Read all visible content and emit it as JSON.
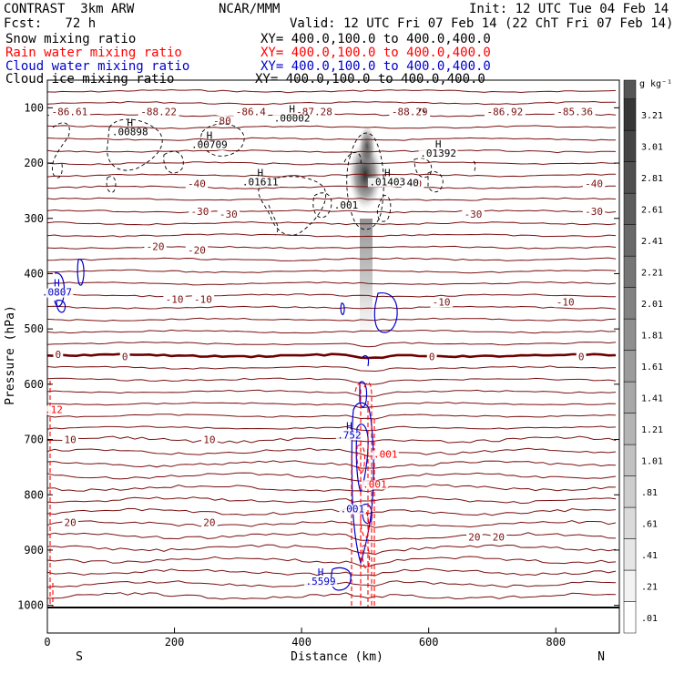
{
  "header": {
    "line1_left": "CONTRAST  3km ARW",
    "line1_center": "NCAR/MMM",
    "line1_right": "Init: 12 UTC Tue 04 Feb 14",
    "line2_left": "Fcst:   72 h",
    "line2_right": "Valid: 12 UTC Fri 07 Feb 14 (22 ChT Fri 07 Feb 14)"
  },
  "legend": [
    {
      "label": "Snow mixing ratio",
      "xy": "XY= 400.0,100.0 to 400.0,400.0",
      "color": "#000000"
    },
    {
      "label": "Rain water mixing ratio",
      "xy": "XY= 400.0,100.0 to 400.0,400.0",
      "color": "#ff0000"
    },
    {
      "label": "Cloud water mixing ratio",
      "xy": "XY= 400.0,100.0 to 400.0,400.0",
      "color": "#0000cc"
    },
    {
      "label": "Cloud ice mixing ratio",
      "xy": "XY= 400.0,100.0 to 400.0,400.0",
      "color": "#000000"
    }
  ],
  "chart_data": {
    "type": "heatmap",
    "xlabel": "Distance (km)",
    "ylabel": "Pressure (hPa)",
    "xlim": [
      0,
      900
    ],
    "ylim": [
      1050,
      50
    ],
    "x_ticks": [
      0,
      200,
      400,
      600,
      800
    ],
    "y_ticks": [
      100,
      200,
      300,
      400,
      500,
      600,
      700,
      800,
      900,
      1000
    ],
    "x_end_labels": {
      "left": "S",
      "right": "N"
    },
    "colorbar": {
      "unit": "g kg⁻¹",
      "levels": [
        ".01",
        ".21",
        ".41",
        ".61",
        ".81",
        "1.01",
        "1.21",
        "1.41",
        "1.61",
        "1.81",
        "2.01",
        "2.21",
        "2.41",
        "2.61",
        "2.81",
        "3.01",
        "3.21"
      ]
    },
    "temperature_labels": [
      {
        "text": "-86.61",
        "x": 35,
        "p": 112
      },
      {
        "text": "-88.22",
        "x": 175,
        "p": 112
      },
      {
        "text": "-80",
        "x": 275,
        "p": 128
      },
      {
        "text": "-86.4",
        "x": 320,
        "p": 112
      },
      {
        "text": "-87.28",
        "x": 420,
        "p": 112
      },
      {
        "text": "-88.29",
        "x": 570,
        "p": 112
      },
      {
        "text": "-86.92",
        "x": 720,
        "p": 112
      },
      {
        "text": "-85.36",
        "x": 830,
        "p": 112
      },
      {
        "text": "-40",
        "x": 235,
        "p": 242
      },
      {
        "text": "-40",
        "x": 575,
        "p": 242
      },
      {
        "text": "-40",
        "x": 860,
        "p": 242
      },
      {
        "text": "-30",
        "x": 240,
        "p": 292
      },
      {
        "text": "-30",
        "x": 285,
        "p": 297
      },
      {
        "text": "-30",
        "x": 670,
        "p": 297
      },
      {
        "text": "-30",
        "x": 860,
        "p": 292
      },
      {
        "text": "-20",
        "x": 170,
        "p": 356
      },
      {
        "text": "-20",
        "x": 235,
        "p": 362
      },
      {
        "text": "-10",
        "x": 200,
        "p": 451
      },
      {
        "text": "-10",
        "x": 245,
        "p": 451
      },
      {
        "text": "-10",
        "x": 620,
        "p": 456
      },
      {
        "text": "-10",
        "x": 815,
        "p": 456
      },
      {
        "text": "0",
        "x": 17,
        "p": 551
      },
      {
        "text": "0",
        "x": 122,
        "p": 555
      },
      {
        "text": "0",
        "x": 605,
        "p": 555
      },
      {
        "text": "0",
        "x": 840,
        "p": 555
      },
      {
        "text": "10",
        "x": 36,
        "p": 705
      },
      {
        "text": "10",
        "x": 255,
        "p": 705
      },
      {
        "text": "20",
        "x": 36,
        "p": 855
      },
      {
        "text": "20",
        "x": 255,
        "p": 855
      },
      {
        "text": "20",
        "x": 672,
        "p": 881
      },
      {
        "text": "20",
        "x": 710,
        "p": 881
      }
    ],
    "max_labels": [
      {
        "text": "H",
        "value": ".00898",
        "x": 130,
        "p": 150,
        "color": "#000000"
      },
      {
        "text": "H",
        "value": ".00709",
        "x": 255,
        "p": 173,
        "color": "#000000"
      },
      {
        "text": "H",
        "value": ".00002",
        "x": 385,
        "p": 125,
        "color": "#000000"
      },
      {
        "text": "H",
        "value": ".01611",
        "x": 335,
        "p": 240,
        "color": "#000000"
      },
      {
        "text": "H",
        "value": ".01403",
        "x": 535,
        "p": 240,
        "color": "#000000"
      },
      {
        "text": "H",
        "value": ".01392",
        "x": 615,
        "p": 188,
        "color": "#000000"
      },
      {
        "text": "",
        "value": ".001",
        "x": 470,
        "p": 282,
        "color": "#000000"
      },
      {
        "text": "",
        "value": "40",
        "x": 575,
        "p": 242,
        "color": "#000000"
      },
      {
        "text": "H",
        "value": ".0807",
        "x": 15,
        "p": 440,
        "color": "#0000cc"
      },
      {
        "text": "H",
        "value": ".5599",
        "x": 430,
        "p": 963,
        "color": "#0000cc"
      },
      {
        "text": "H",
        "value": ".752",
        "x": 475,
        "p": 698,
        "color": "#0000cc"
      },
      {
        "text": "",
        "value": ".001",
        "x": 532,
        "p": 733,
        "color": "#ff0000"
      },
      {
        "text": "",
        "value": ".001",
        "x": 515,
        "p": 787,
        "color": "#ff0000"
      },
      {
        "text": "",
        "value": ".001",
        "x": 480,
        "p": 832,
        "color": "#0000cc"
      },
      {
        "text": "",
        "value": ".12",
        "x": 10,
        "p": 652,
        "color": "#ff0000"
      }
    ]
  }
}
